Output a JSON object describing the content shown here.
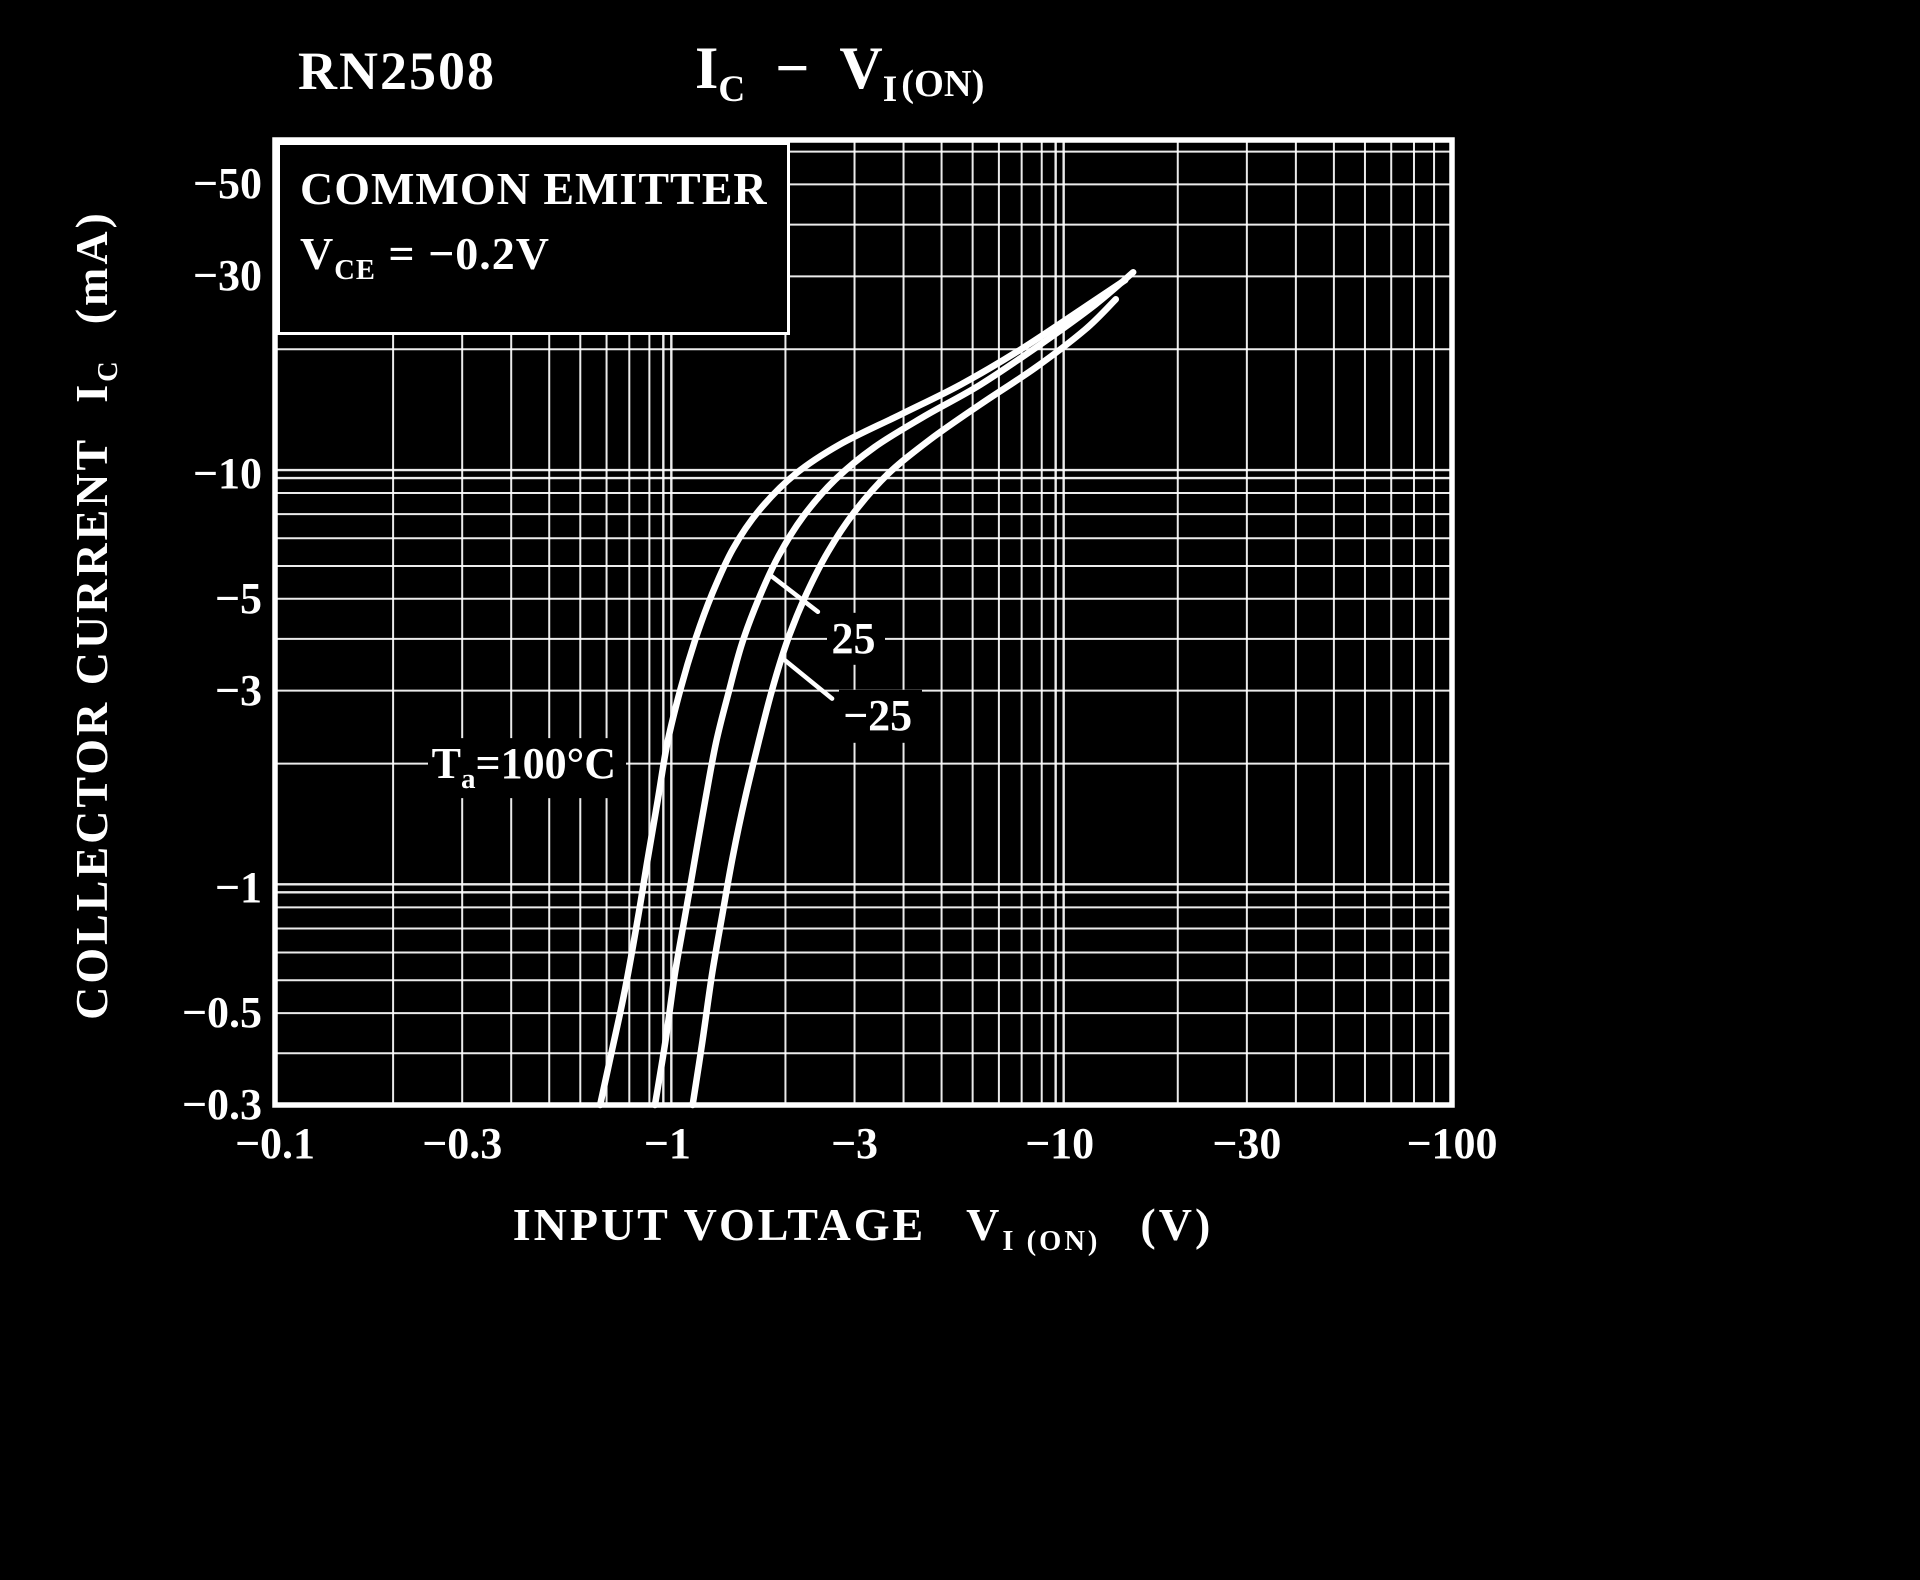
{
  "page": {
    "background": "#000000",
    "ink": "#ffffff"
  },
  "header": {
    "model": "RN2508",
    "title": {
      "sym1": "I",
      "sub1": "C",
      "dash": "−",
      "sym2": "V",
      "sub2": "I",
      "on": "(ON)"
    }
  },
  "inset": {
    "line1": "COMMON EMITTER",
    "line2": {
      "sym": "V",
      "sub": "CE",
      "value": "= −0.2V"
    }
  },
  "y_axis_title": {
    "text": "COLLECTOR CURRENT",
    "sym": "I",
    "sub": "C",
    "unit": "(mA)"
  },
  "x_axis_title": {
    "text": "INPUT VOLTAGE",
    "sym": "V",
    "sub": "I (ON)",
    "unit": "(V)"
  },
  "chart_data": {
    "type": "line",
    "device": "RN2508",
    "title": "IC − VI(ON)",
    "conditions": [
      "COMMON EMITTER",
      "VCE = −0.2V"
    ],
    "xlabel": "INPUT VOLTAGE VI(ON) (V)",
    "ylabel": "COLLECTOR CURRENT IC (mA)",
    "x_scale": "log",
    "y_scale": "log",
    "sign_note": "Both axes are negative (PNP device); magnitudes are plotted on log-log scales.",
    "x_range_abs": [
      0.1,
      100
    ],
    "y_range_abs": [
      0.3,
      64
    ],
    "x_ticks": [
      {
        "value": 0.1,
        "label": "−0.1"
      },
      {
        "value": 0.3,
        "label": "−0.3"
      },
      {
        "value": 1,
        "label": "−1"
      },
      {
        "value": 3,
        "label": "−3"
      },
      {
        "value": 10,
        "label": "−10"
      },
      {
        "value": 30,
        "label": "−30"
      },
      {
        "value": 100,
        "label": "−100"
      }
    ],
    "y_ticks": [
      {
        "value": 50,
        "label": "−50"
      },
      {
        "value": 30,
        "label": "−30"
      },
      {
        "value": 10,
        "label": "−10"
      },
      {
        "value": 5,
        "label": "−5"
      },
      {
        "value": 3,
        "label": "−3"
      },
      {
        "value": 1,
        "label": "−1"
      },
      {
        "value": 0.5,
        "label": "−0.5"
      },
      {
        "value": 0.3,
        "label": "−0.3"
      }
    ],
    "grid": {
      "x_decade_doubles": [
        1,
        10
      ],
      "y_decade_doubles": [
        1,
        10
      ]
    },
    "series": [
      {
        "name": "Ta = 100°C",
        "points": [
          [
            0.674,
            0.3
          ],
          [
            0.724,
            0.41
          ],
          [
            0.78,
            0.57
          ],
          [
            0.84,
            0.84
          ],
          [
            0.89,
            1.17
          ],
          [
            0.946,
            1.64
          ],
          [
            1.0,
            2.24
          ],
          [
            1.08,
            3.02
          ],
          [
            1.18,
            4.0
          ],
          [
            1.3,
            5.13
          ],
          [
            1.47,
            6.6
          ],
          [
            1.72,
            8.2
          ],
          [
            2.12,
            10.0
          ],
          [
            2.76,
            11.8
          ],
          [
            3.92,
            13.9
          ],
          [
            5.57,
            16.4
          ],
          [
            7.9,
            19.9
          ],
          [
            11.3,
            24.9
          ],
          [
            14.7,
            29.4
          ]
        ]
      },
      {
        "name": "Ta = 25°C",
        "points": [
          [
            0.93,
            0.3
          ],
          [
            0.99,
            0.43
          ],
          [
            1.045,
            0.62
          ],
          [
            1.11,
            0.86
          ],
          [
            1.18,
            1.2
          ],
          [
            1.25,
            1.64
          ],
          [
            1.33,
            2.24
          ],
          [
            1.43,
            2.95
          ],
          [
            1.55,
            3.9
          ],
          [
            1.71,
            5.0
          ],
          [
            1.92,
            6.34
          ],
          [
            2.22,
            7.9
          ],
          [
            2.68,
            9.7
          ],
          [
            3.37,
            11.6
          ],
          [
            4.53,
            13.8
          ],
          [
            6.26,
            16.4
          ],
          [
            8.9,
            20.5
          ],
          [
            12.3,
            25.6
          ],
          [
            15.4,
            30.7
          ]
        ]
      },
      {
        "name": "Ta = −25°C",
        "points": [
          [
            1.16,
            0.3
          ],
          [
            1.23,
            0.43
          ],
          [
            1.3,
            0.62
          ],
          [
            1.38,
            0.86
          ],
          [
            1.47,
            1.2
          ],
          [
            1.58,
            1.66
          ],
          [
            1.71,
            2.26
          ],
          [
            1.85,
            3.02
          ],
          [
            2.03,
            4.0
          ],
          [
            2.26,
            5.13
          ],
          [
            2.57,
            6.5
          ],
          [
            3.0,
            8.1
          ],
          [
            3.65,
            10.0
          ],
          [
            4.67,
            12.1
          ],
          [
            6.26,
            14.7
          ],
          [
            8.7,
            18.1
          ],
          [
            11.6,
            22.3
          ],
          [
            13.9,
            26.4
          ]
        ]
      }
    ],
    "annotations": [
      {
        "id": "ta-100",
        "text": "Ta=100°C",
        "parts": {
          "prefix": "T",
          "sub": "a",
          "suffix": "=100°C"
        },
        "x_abs": 0.245,
        "y_abs": 1.95
      },
      {
        "id": "t-25",
        "text": "25",
        "x_abs": 2.56,
        "y_abs": 4.0,
        "leader": {
          "x1_abs": 2.42,
          "y1_abs": 4.65,
          "x2_abs": 1.83,
          "y2_abs": 5.7
        }
      },
      {
        "id": "t-minus-25",
        "text": "−25",
        "x_abs": 2.74,
        "y_abs": 2.6,
        "leader": {
          "x1_abs": 2.63,
          "y1_abs": 2.87,
          "x2_abs": 1.96,
          "y2_abs": 3.6
        }
      }
    ]
  }
}
